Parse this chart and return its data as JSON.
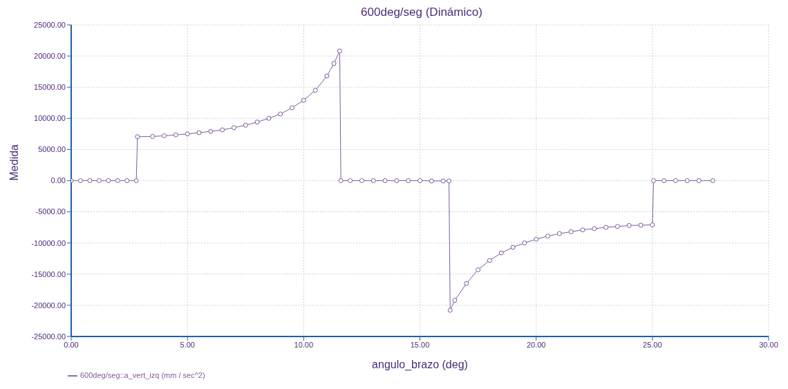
{
  "chart_data": {
    "type": "line",
    "title": "600deg/seg (Dinámico)",
    "xlabel": "angulo_brazo (deg)",
    "ylabel": "Medida",
    "xlim": [
      0,
      30
    ],
    "xticks": [
      {
        "value": 0,
        "label": "0.00"
      },
      {
        "value": 5,
        "label": "5.00"
      },
      {
        "value": 10,
        "label": "10.00"
      },
      {
        "value": 15,
        "label": "15.00"
      },
      {
        "value": 20,
        "label": "20.00"
      },
      {
        "value": 25,
        "label": "25.00"
      },
      {
        "value": 30,
        "label": "30.00"
      }
    ],
    "ylim": [
      -25000,
      25000
    ],
    "yticks": [
      {
        "value": -25000,
        "label": "-25000.00"
      },
      {
        "value": -20000,
        "label": "-20000.00"
      },
      {
        "value": -15000,
        "label": "-15000.00"
      },
      {
        "value": -10000,
        "label": "-10000.00"
      },
      {
        "value": -5000,
        "label": "-5000.00"
      },
      {
        "value": 0,
        "label": "0.00"
      },
      {
        "value": 5000,
        "label": "5000.00"
      },
      {
        "value": 10000,
        "label": "10000.00"
      },
      {
        "value": 15000,
        "label": "15000.00"
      },
      {
        "value": 20000,
        "label": "20000.00"
      },
      {
        "value": 25000,
        "label": "25000.00"
      }
    ],
    "grid": true,
    "legend": "bottom left",
    "marker": "circle",
    "line_style": "solid",
    "series": [
      {
        "name": "600deg/seg::a_vert_izq (mm / sec^2)",
        "color": "#7b5a9c",
        "x": [
          0,
          0.4,
          0.8,
          1.2,
          1.6,
          2.0,
          2.4,
          2.8,
          2.85,
          3.5,
          4,
          4.5,
          5,
          5.5,
          6,
          6.5,
          7,
          7.5,
          8,
          8.5,
          9,
          9.5,
          10,
          10.5,
          11,
          11.3,
          11.55,
          11.6,
          12,
          12.5,
          13,
          13.5,
          14,
          14.5,
          15,
          15.5,
          16,
          16.25,
          16.3,
          16.5,
          17,
          17.5,
          18,
          18.5,
          19,
          19.5,
          20,
          20.5,
          21,
          21.5,
          22,
          22.5,
          23,
          23.5,
          24,
          24.5,
          25,
          25.05,
          25.5,
          26,
          26.5,
          27,
          27.6
        ],
        "values": [
          0,
          0,
          0,
          0,
          0,
          0,
          0,
          0,
          7050,
          7100,
          7200,
          7350,
          7500,
          7700,
          7900,
          8150,
          8500,
          8900,
          9400,
          10000,
          10700,
          11700,
          12900,
          14500,
          16800,
          18800,
          20800,
          0,
          0,
          0,
          0,
          0,
          0,
          0,
          0,
          -50,
          -50,
          -50,
          -20800,
          -19200,
          -16500,
          -14300,
          -12800,
          -11600,
          -10700,
          -10000,
          -9400,
          -8900,
          -8500,
          -8200,
          -7900,
          -7700,
          -7500,
          -7350,
          -7200,
          -7150,
          -7100,
          0,
          0,
          0,
          0,
          0,
          0
        ]
      }
    ]
  }
}
